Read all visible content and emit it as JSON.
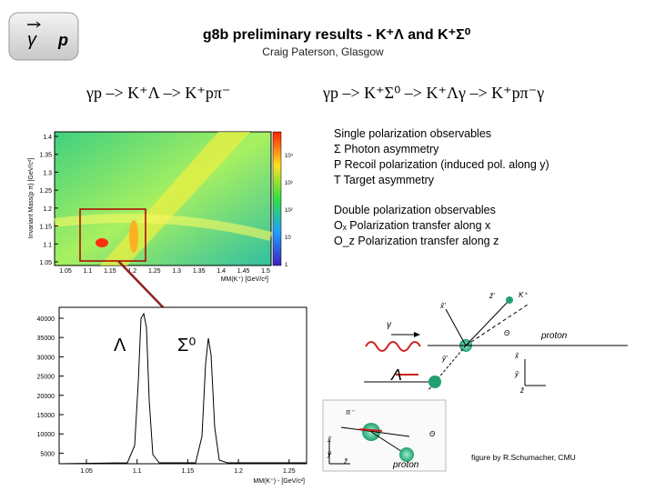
{
  "logo": {
    "photon": "γ",
    "target": "p"
  },
  "header": {
    "title": "g8b preliminary results - K⁺Λ  and K⁺Σ⁰",
    "subtitle": "Craig Paterson, Glasgow"
  },
  "reactions": [
    "γp –> K⁺Λ –> K⁺pπ⁻",
    "γp –> K⁺Σ⁰ –> K⁺Λγ –> K⁺pπ⁻γ"
  ],
  "single_observables": {
    "heading": "Single polarization observables",
    "items": [
      "Σ Photon asymmetry",
      "P Recoil polarization (induced pol. along y)",
      "T Target asymmetry"
    ]
  },
  "double_observables": {
    "heading": "Double polarization observables",
    "items": [
      "Oₓ Polarization transfer along x",
      "O_z Polarization transfer along z"
    ]
  },
  "plot_2d": {
    "y_label": "Invariant Mass(p π) [GeV/c²]",
    "x_label": "MM(K⁺) [GeV/c²]",
    "yticks": [
      "1.4",
      "1.35",
      "1.3",
      "1.25",
      "1.2",
      "1.15",
      "1.1",
      "1.05"
    ],
    "xticks": [
      "1.05",
      "1.1",
      "1.15",
      "1.2",
      "1.25",
      "1.3",
      "1.35",
      "1.4",
      "1.45",
      "1.5"
    ],
    "colorbar_ticks": [
      "10⁴",
      "10³",
      "10²",
      "10",
      "1"
    ]
  },
  "plot_1d": {
    "x_label": "MM(K⁺) - [GeV/c²]",
    "yticks": [
      "40000",
      "35000",
      "30000",
      "25000",
      "20000",
      "15000",
      "10000",
      "5000"
    ],
    "xticks": [
      "1.05",
      "1.1",
      "1.15",
      "1.2",
      "1.25"
    ],
    "annotations": [
      "Λ",
      "Σ⁰"
    ]
  },
  "diagram": {
    "labels": [
      "x̂'",
      "ẑ'",
      "K⁺",
      "ŷ'",
      "Θ",
      "γ",
      "proton",
      "Λ",
      "x̂",
      "ŷ",
      "ẑ",
      "π⁻",
      "Θ",
      "x̂",
      "ŷ",
      "ẑ",
      "proton"
    ],
    "credit": "figure by  R.Schumacher, CMU"
  }
}
